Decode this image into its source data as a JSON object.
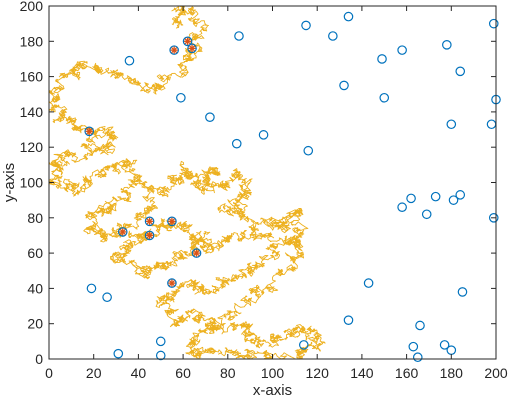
{
  "chart_data": {
    "type": "scatter",
    "xlabel": "x-axis",
    "ylabel": "y-axis",
    "xlim": [
      0,
      200
    ],
    "ylim": [
      0,
      200
    ],
    "xticks": [
      "0",
      "20",
      "40",
      "60",
      "80",
      "100",
      "120",
      "140",
      "160",
      "180",
      "200"
    ],
    "yticks": [
      "0",
      "20",
      "40",
      "60",
      "80",
      "100",
      "120",
      "140",
      "160",
      "180",
      "200"
    ],
    "grid": false,
    "colors": {
      "path": "#EDB120",
      "circle": "#0072BD",
      "star": "#D95319"
    },
    "path_anchors": [
      [
        55,
        190
      ],
      [
        62,
        198
      ],
      [
        68,
        186
      ],
      [
        62,
        172
      ],
      [
        55,
        160
      ],
      [
        45,
        152
      ],
      [
        30,
        162
      ],
      [
        15,
        168
      ],
      [
        5,
        160
      ],
      [
        2,
        145
      ],
      [
        8,
        134
      ],
      [
        18,
        128
      ],
      [
        30,
        126
      ],
      [
        22,
        118
      ],
      [
        8,
        116
      ],
      [
        2,
        110
      ],
      [
        4,
        100
      ],
      [
        14,
        96
      ],
      [
        24,
        104
      ],
      [
        34,
        112
      ],
      [
        40,
        100
      ],
      [
        34,
        90
      ],
      [
        22,
        84
      ],
      [
        18,
        74
      ],
      [
        28,
        70
      ],
      [
        40,
        78
      ],
      [
        46,
        92
      ],
      [
        54,
        98
      ],
      [
        62,
        108
      ],
      [
        68,
        96
      ],
      [
        72,
        110
      ],
      [
        76,
        96
      ],
      [
        84,
        104
      ],
      [
        88,
        92
      ],
      [
        80,
        82
      ],
      [
        94,
        78
      ],
      [
        106,
        74
      ],
      [
        110,
        86
      ],
      [
        114,
        72
      ],
      [
        100,
        64
      ],
      [
        92,
        52
      ],
      [
        80,
        44
      ],
      [
        70,
        36
      ],
      [
        60,
        44
      ],
      [
        52,
        32
      ],
      [
        56,
        20
      ],
      [
        66,
        26
      ],
      [
        76,
        16
      ],
      [
        88,
        20
      ],
      [
        92,
        8
      ],
      [
        104,
        12
      ],
      [
        116,
        18
      ],
      [
        120,
        8
      ],
      [
        108,
        2
      ],
      [
        90,
        0
      ],
      [
        76,
        4
      ],
      [
        62,
        6
      ],
      [
        70,
        14
      ],
      [
        84,
        30
      ],
      [
        98,
        40
      ],
      [
        110,
        54
      ],
      [
        112,
        66
      ],
      [
        98,
        70
      ],
      [
        84,
        70
      ],
      [
        72,
        62
      ],
      [
        64,
        70
      ],
      [
        56,
        78
      ],
      [
        46,
        74
      ],
      [
        38,
        66
      ],
      [
        30,
        58
      ],
      [
        40,
        50
      ],
      [
        50,
        52
      ],
      [
        60,
        60
      ],
      [
        70,
        72
      ]
    ],
    "stars": [
      {
        "x": 18,
        "y": 129
      },
      {
        "x": 33,
        "y": 72
      },
      {
        "x": 45,
        "y": 78
      },
      {
        "x": 45,
        "y": 70
      },
      {
        "x": 55,
        "y": 78
      },
      {
        "x": 66,
        "y": 60
      },
      {
        "x": 55,
        "y": 43
      },
      {
        "x": 56,
        "y": 175
      },
      {
        "x": 62,
        "y": 180
      },
      {
        "x": 64,
        "y": 176
      }
    ],
    "circles": [
      {
        "x": 36,
        "y": 169
      },
      {
        "x": 59,
        "y": 148
      },
      {
        "x": 72,
        "y": 137
      },
      {
        "x": 85,
        "y": 183
      },
      {
        "x": 84,
        "y": 122
      },
      {
        "x": 96,
        "y": 127
      },
      {
        "x": 115,
        "y": 189
      },
      {
        "x": 116,
        "y": 118
      },
      {
        "x": 127,
        "y": 183
      },
      {
        "x": 134,
        "y": 194
      },
      {
        "x": 132,
        "y": 155
      },
      {
        "x": 149,
        "y": 170
      },
      {
        "x": 150,
        "y": 148
      },
      {
        "x": 158,
        "y": 175
      },
      {
        "x": 178,
        "y": 178
      },
      {
        "x": 184,
        "y": 163
      },
      {
        "x": 180,
        "y": 133
      },
      {
        "x": 198,
        "y": 133
      },
      {
        "x": 200,
        "y": 147
      },
      {
        "x": 199,
        "y": 190
      },
      {
        "x": 162,
        "y": 91
      },
      {
        "x": 158,
        "y": 86
      },
      {
        "x": 169,
        "y": 82
      },
      {
        "x": 173,
        "y": 92
      },
      {
        "x": 181,
        "y": 90
      },
      {
        "x": 184,
        "y": 93
      },
      {
        "x": 199,
        "y": 80
      },
      {
        "x": 143,
        "y": 43
      },
      {
        "x": 185,
        "y": 38
      },
      {
        "x": 134,
        "y": 22
      },
      {
        "x": 166,
        "y": 19
      },
      {
        "x": 163,
        "y": 7
      },
      {
        "x": 165,
        "y": 1
      },
      {
        "x": 177,
        "y": 8
      },
      {
        "x": 180,
        "y": 5
      },
      {
        "x": 114,
        "y": 8
      },
      {
        "x": 19,
        "y": 40
      },
      {
        "x": 26,
        "y": 35
      },
      {
        "x": 31,
        "y": 3
      },
      {
        "x": 50,
        "y": 10
      },
      {
        "x": 50,
        "y": 2
      }
    ]
  }
}
